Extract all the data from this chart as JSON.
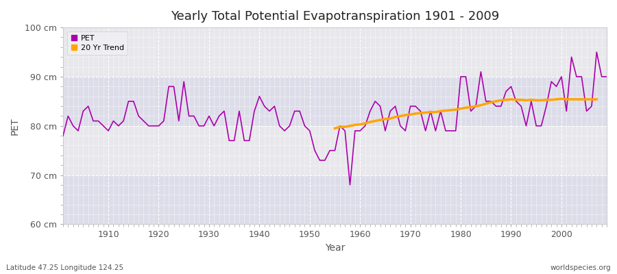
{
  "title": "Yearly Total Potential Evapotranspiration 1901 - 2009",
  "ylabel": "PET",
  "xlabel": "Year",
  "subtitle_left": "Latitude 47.25 Longitude 124.25",
  "subtitle_right": "worldspecies.org",
  "ylim": [
    60,
    100
  ],
  "xlim": [
    1901,
    2009
  ],
  "yticks": [
    60,
    70,
    80,
    90,
    100
  ],
  "ytick_labels": [
    "60 cm",
    "70 cm",
    "80 cm",
    "90 cm",
    "100 cm"
  ],
  "xticks": [
    1910,
    1920,
    1930,
    1940,
    1950,
    1960,
    1970,
    1980,
    1990,
    2000
  ],
  "pet_color": "#aa00aa",
  "trend_color": "#ffa500",
  "fig_bg_color": "#ffffff",
  "plot_bg_color": "#e8e8ec",
  "band1_color": "#dddde8",
  "band2_color": "#e8e8f0",
  "years": [
    1901,
    1902,
    1903,
    1904,
    1905,
    1906,
    1907,
    1908,
    1909,
    1910,
    1911,
    1912,
    1913,
    1914,
    1915,
    1916,
    1917,
    1918,
    1919,
    1920,
    1921,
    1922,
    1923,
    1924,
    1925,
    1926,
    1927,
    1928,
    1929,
    1930,
    1931,
    1932,
    1933,
    1934,
    1935,
    1936,
    1937,
    1938,
    1939,
    1940,
    1941,
    1942,
    1943,
    1944,
    1945,
    1946,
    1947,
    1948,
    1949,
    1950,
    1951,
    1952,
    1953,
    1954,
    1955,
    1956,
    1957,
    1958,
    1959,
    1960,
    1961,
    1962,
    1963,
    1964,
    1965,
    1966,
    1967,
    1968,
    1969,
    1970,
    1971,
    1972,
    1973,
    1974,
    1975,
    1976,
    1977,
    1978,
    1979,
    1980,
    1981,
    1982,
    1983,
    1984,
    1985,
    1986,
    1987,
    1988,
    1989,
    1990,
    1991,
    1992,
    1993,
    1994,
    1995,
    1996,
    1997,
    1998,
    1999,
    2000,
    2001,
    2002,
    2003,
    2004,
    2005,
    2006,
    2007,
    2008,
    2009
  ],
  "pet_values": [
    78,
    82,
    80,
    79,
    83,
    84,
    81,
    81,
    80,
    79,
    81,
    80,
    81,
    85,
    85,
    82,
    81,
    80,
    80,
    80,
    81,
    88,
    88,
    81,
    89,
    82,
    82,
    80,
    80,
    82,
    80,
    82,
    83,
    77,
    77,
    83,
    77,
    77,
    83,
    86,
    84,
    83,
    84,
    80,
    79,
    80,
    83,
    83,
    80,
    79,
    75,
    73,
    73,
    75,
    75,
    80,
    79,
    68,
    79,
    79,
    80,
    83,
    85,
    84,
    79,
    83,
    84,
    80,
    79,
    84,
    84,
    83,
    79,
    83,
    79,
    83,
    79,
    79,
    79,
    90,
    90,
    83,
    84,
    91,
    85,
    85,
    84,
    84,
    87,
    88,
    85,
    84,
    80,
    85,
    80,
    80,
    84,
    89,
    88,
    90,
    83,
    94,
    90,
    90,
    83,
    84,
    95,
    90,
    90
  ],
  "trend_years": [
    1955,
    1956,
    1957,
    1958,
    1959,
    1960,
    1961,
    1962,
    1963,
    1964,
    1965,
    1966,
    1967,
    1968,
    1969,
    1970,
    1971,
    1972,
    1973,
    1974,
    1975,
    1976,
    1977,
    1978,
    1979,
    1980,
    1981,
    1982,
    1983,
    1984,
    1985,
    1986,
    1987,
    1988,
    1989,
    1990,
    1991,
    1992,
    1993,
    1994,
    1995,
    1996,
    1997,
    1998,
    1999,
    2000,
    2001,
    2002,
    2003,
    2004,
    2005,
    2006,
    2007
  ],
  "trend_values": [
    79.5,
    79.8,
    79.8,
    80.0,
    80.2,
    80.3,
    80.5,
    80.8,
    81.0,
    81.2,
    81.4,
    81.5,
    81.8,
    82.0,
    82.2,
    82.3,
    82.5,
    82.6,
    82.7,
    82.8,
    82.8,
    83.0,
    83.1,
    83.2,
    83.3,
    83.5,
    83.7,
    83.8,
    84.0,
    84.2,
    84.5,
    84.8,
    85.0,
    85.2,
    85.3,
    85.4,
    85.3,
    85.3,
    85.2,
    85.3,
    85.2,
    85.2,
    85.3,
    85.3,
    85.4,
    85.5,
    85.4,
    85.4,
    85.4,
    85.4,
    85.4,
    85.4,
    85.4
  ]
}
